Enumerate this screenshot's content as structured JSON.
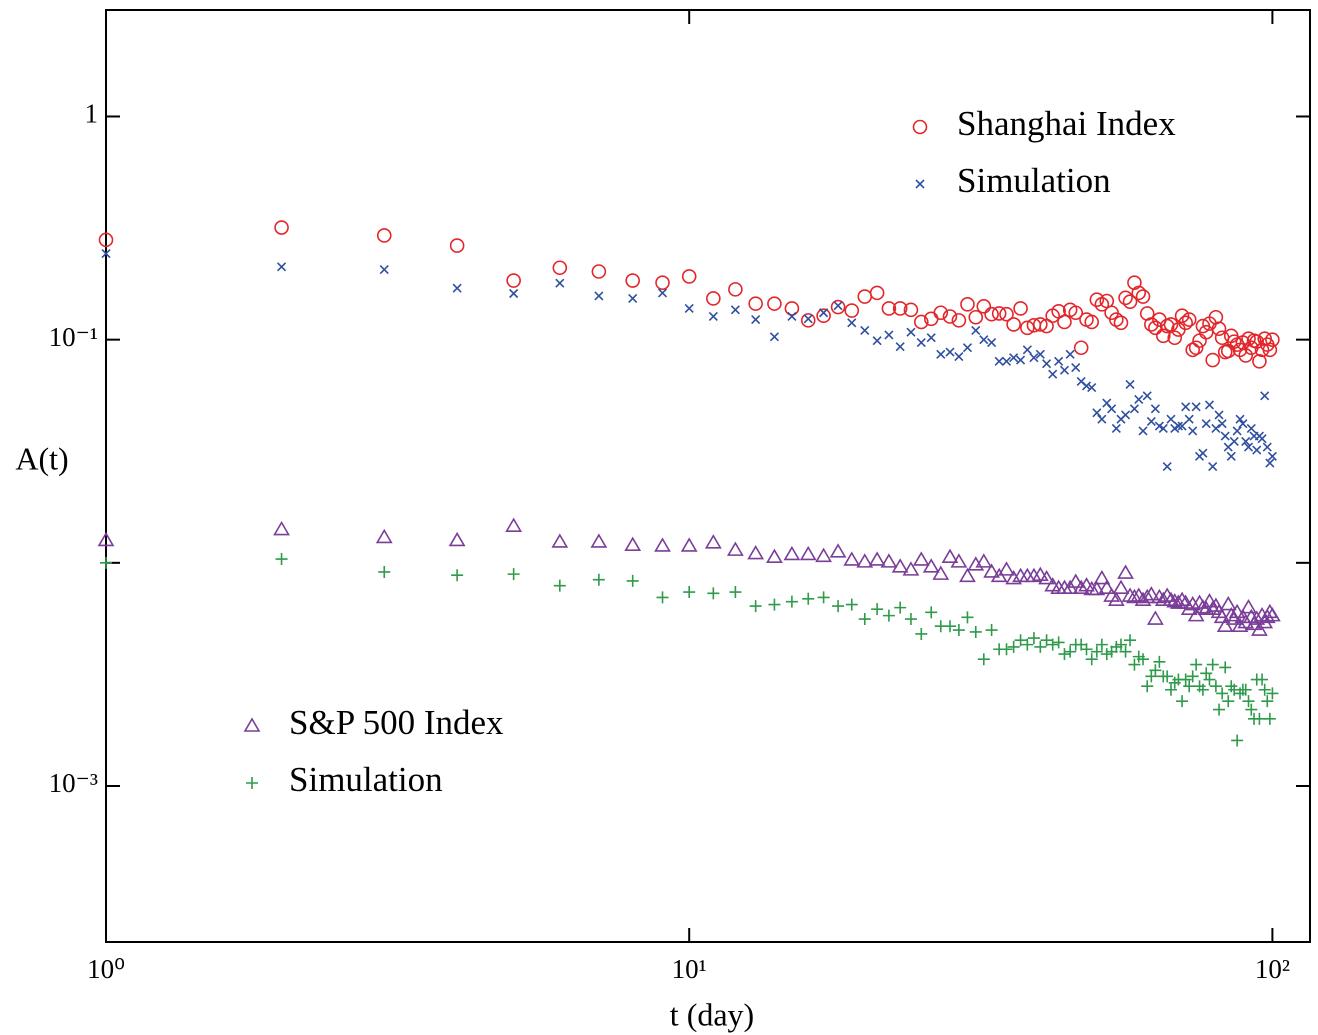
{
  "chart_data": {
    "type": "scatter",
    "x_label": "t (day)",
    "y_label": "A(t)",
    "xlog": true,
    "ylog": true,
    "xlim": [
      1,
      116
    ],
    "ylim": [
      0.0002,
      3
    ],
    "xticks": [
      {
        "value": 1,
        "label": "10⁰"
      },
      {
        "value": 10,
        "label": "10¹"
      },
      {
        "value": 100,
        "label": "10²"
      }
    ],
    "yticks": [
      1,
      {
        "value": 0.1,
        "label": "10⁻¹"
      },
      {
        "value": 0.01,
        "label": null
      },
      {
        "value": 0.001,
        "label": "10⁻³"
      }
    ],
    "x": [
      1,
      2,
      3,
      4,
      5,
      6,
      7,
      8,
      9,
      10,
      11,
      12,
      13,
      14,
      15,
      16,
      17,
      18,
      19,
      20,
      21,
      22,
      23,
      24,
      25,
      26,
      27,
      28,
      29,
      30,
      31,
      32,
      33,
      34,
      35,
      36,
      37,
      38,
      39,
      40,
      41,
      42,
      43,
      44,
      45,
      46,
      47,
      48,
      49,
      50,
      51,
      52,
      53,
      54,
      55,
      56,
      57,
      58,
      59,
      60,
      61,
      62,
      63,
      64,
      65,
      66,
      67,
      68,
      69,
      70,
      71,
      72,
      73,
      74,
      75,
      76,
      77,
      78,
      79,
      80,
      81,
      82,
      83,
      84,
      85,
      86,
      87,
      88,
      89,
      90,
      91,
      92,
      93,
      94,
      95,
      96,
      97,
      98,
      99,
      100
    ],
    "series": [
      {
        "name": "Shanghai Index",
        "color": "#e3262a",
        "marker": "circle",
        "values": [
          0.28,
          0.318,
          0.293,
          0.264,
          0.184,
          0.21,
          0.202,
          0.184,
          0.18,
          0.192,
          0.153,
          0.168,
          0.145,
          0.145,
          0.138,
          0.122,
          0.128,
          0.14,
          0.135,
          0.156,
          0.162,
          0.138,
          0.138,
          0.136,
          0.12,
          0.124,
          0.132,
          0.127,
          0.122,
          0.144,
          0.126,
          0.141,
          0.13,
          0.131,
          0.13,
          0.117,
          0.138,
          0.113,
          0.116,
          0.117,
          0.115,
          0.128,
          0.134,
          0.12,
          0.136,
          0.132,
          0.092,
          0.123,
          0.12,
          0.151,
          0.144,
          0.149,
          0.132,
          0.123,
          0.119,
          0.154,
          0.148,
          0.18,
          0.162,
          0.156,
          0.131,
          0.117,
          0.113,
          0.123,
          0.104,
          0.115,
          0.117,
          0.102,
          0.111,
          0.128,
          0.119,
          0.123,
          0.09,
          0.092,
          0.099,
          0.115,
          0.108,
          0.118,
          0.081,
          0.126,
          0.112,
          0.102,
          0.088,
          0.089,
          0.104,
          0.098,
          0.095,
          0.09,
          0.097,
          0.085,
          0.101,
          0.092,
          0.099,
          0.098,
          0.08,
          0.09,
          0.101,
          0.095,
          0.09,
          0.1
        ]
      },
      {
        "name": "Simulation",
        "color": "#2f4f9f",
        "marker": "x",
        "values": [
          0.243,
          0.212,
          0.206,
          0.17,
          0.161,
          0.179,
          0.157,
          0.153,
          0.162,
          0.138,
          0.127,
          0.136,
          0.123,
          0.103,
          0.127,
          0.124,
          0.132,
          0.142,
          0.119,
          0.11,
          0.099,
          0.105,
          0.093,
          0.108,
          0.097,
          0.102,
          0.086,
          0.088,
          0.084,
          0.092,
          0.11,
          0.1,
          0.097,
          0.08,
          0.08,
          0.083,
          0.081,
          0.09,
          0.083,
          0.086,
          0.078,
          0.07,
          0.08,
          0.073,
          0.086,
          0.075,
          0.065,
          0.062,
          0.061,
          0.047,
          0.044,
          0.052,
          0.049,
          0.04,
          0.044,
          0.046,
          0.063,
          0.049,
          0.054,
          0.039,
          0.056,
          0.043,
          0.049,
          0.041,
          0.04,
          0.027,
          0.044,
          0.04,
          0.041,
          0.041,
          0.05,
          0.044,
          0.039,
          0.05,
          0.03,
          0.031,
          0.042,
          0.051,
          0.027,
          0.04,
          0.046,
          0.042,
          0.037,
          0.033,
          0.03,
          0.035,
          0.039,
          0.044,
          0.042,
          0.035,
          0.033,
          0.04,
          0.037,
          0.032,
          0.037,
          0.036,
          0.056,
          0.033,
          0.028,
          0.03
        ]
      },
      {
        "name": "S&P 500 Index",
        "color": "#7a3d98",
        "marker": "triangle",
        "values": [
          0.0126,
          0.0141,
          0.013,
          0.0126,
          0.0146,
          0.0124,
          0.0124,
          0.012,
          0.0119,
          0.0119,
          0.0123,
          0.0114,
          0.011,
          0.0106,
          0.0109,
          0.0109,
          0.0107,
          0.0112,
          0.0103,
          0.0101,
          0.0103,
          0.0101,
          0.0096,
          0.0093,
          0.0103,
          0.0096,
          0.0089,
          0.0106,
          0.0101,
          0.0087,
          0.0098,
          0.0101,
          0.0091,
          0.0087,
          0.0093,
          0.0085,
          0.0087,
          0.0087,
          0.0087,
          0.0088,
          0.0085,
          0.0079,
          0.0077,
          0.0077,
          0.0077,
          0.0082,
          0.0077,
          0.0079,
          0.0076,
          0.0076,
          0.0085,
          0.0077,
          0.0071,
          0.0068,
          0.0077,
          0.009,
          0.0071,
          0.007,
          0.0071,
          0.0068,
          0.007,
          0.0072,
          0.0056,
          0.007,
          0.0068,
          0.0071,
          0.0068,
          0.0067,
          0.0066,
          0.0068,
          0.0066,
          0.0062,
          0.0065,
          0.0058,
          0.0066,
          0.0063,
          0.0062,
          0.0067,
          0.0062,
          0.0064,
          0.006,
          0.0057,
          0.0052,
          0.0065,
          0.0058,
          0.0056,
          0.006,
          0.0052,
          0.0057,
          0.0054,
          0.0063,
          0.0057,
          0.0053,
          0.0056,
          0.005,
          0.0058,
          0.0054,
          0.0057,
          0.006,
          0.0058
        ]
      },
      {
        "name": "Simulation",
        "color": "#2e9a4a",
        "marker": "plus",
        "values": [
          0.01,
          0.0104,
          0.0091,
          0.0088,
          0.0089,
          0.0079,
          0.0084,
          0.0083,
          0.007,
          0.0074,
          0.0073,
          0.0074,
          0.0064,
          0.0065,
          0.0067,
          0.0069,
          0.007,
          0.0064,
          0.0065,
          0.0056,
          0.0062,
          0.0058,
          0.0063,
          0.0056,
          0.0048,
          0.006,
          0.0052,
          0.0052,
          0.005,
          0.0057,
          0.0049,
          0.0037,
          0.005,
          0.0041,
          0.0041,
          0.0042,
          0.0045,
          0.0043,
          0.0046,
          0.0042,
          0.0045,
          0.0043,
          0.0044,
          0.0039,
          0.004,
          0.0043,
          0.0043,
          0.0041,
          0.0037,
          0.004,
          0.0043,
          0.0039,
          0.004,
          0.0042,
          0.0043,
          0.004,
          0.0045,
          0.0035,
          0.0038,
          0.0037,
          0.0028,
          0.0031,
          0.0033,
          0.0036,
          0.0031,
          0.0031,
          0.0027,
          0.0029,
          0.003,
          0.0024,
          0.003,
          0.0028,
          0.0031,
          0.0035,
          0.0028,
          0.0027,
          0.0032,
          0.003,
          0.0035,
          0.0028,
          0.0022,
          0.0026,
          0.0034,
          0.0024,
          0.0028,
          0.0027,
          0.0016,
          0.0026,
          0.0027,
          0.0027,
          0.0024,
          0.0022,
          0.002,
          0.003,
          0.002,
          0.003,
          0.0027,
          0.0024,
          0.002,
          0.0026
        ]
      }
    ]
  }
}
